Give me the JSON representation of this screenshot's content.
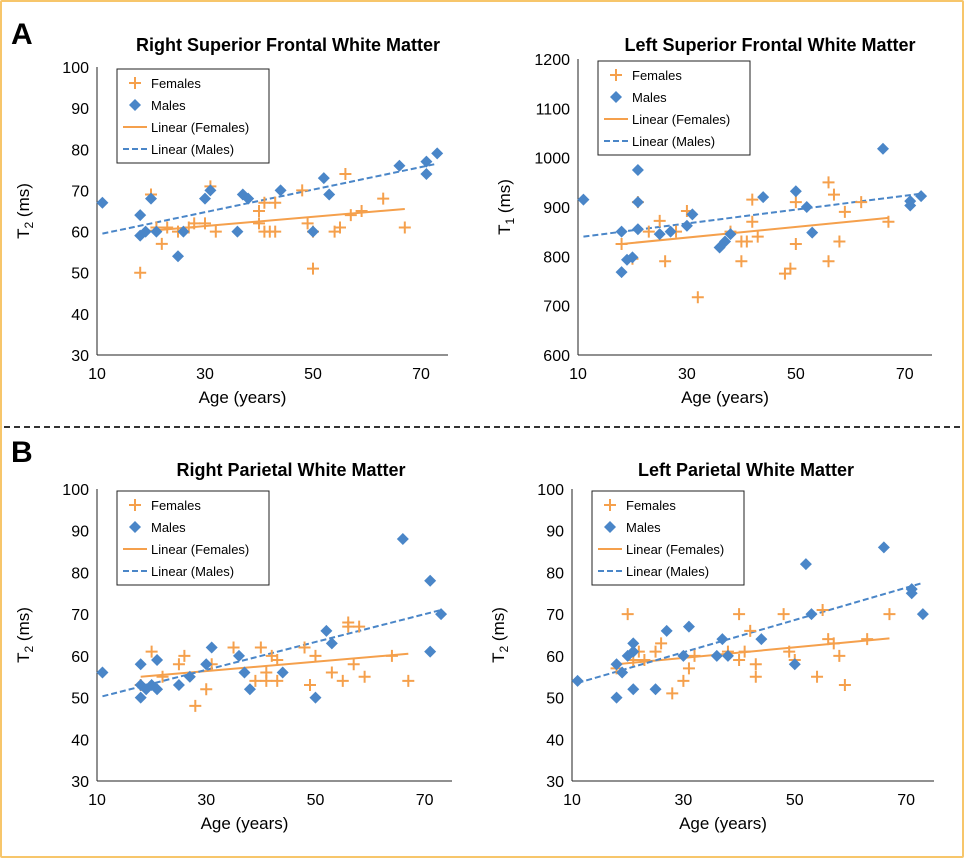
{
  "figure": {
    "panel_a_label": "A",
    "panel_b_label": "B",
    "colors": {
      "females": "#f5a04c",
      "males": "#4a86c8",
      "frame": "#f7c66b"
    }
  },
  "chart_data": [
    {
      "id": "rsf",
      "type": "scatter",
      "title": "Right Superior Frontal White Matter",
      "xlabel": "Age (years)",
      "ylabel_main": "T",
      "ylabel_sub": "2",
      "ylabel_rest": " (ms)",
      "xlim": [
        10,
        75
      ],
      "ylim": [
        30,
        100
      ],
      "xticks": [
        10,
        30,
        50,
        70
      ],
      "yticks": [
        30,
        40,
        50,
        60,
        70,
        80,
        90,
        100
      ],
      "legend": [
        "Females",
        "Males",
        "Linear (Females)",
        "Linear (Males)"
      ],
      "series": [
        {
          "name": "Females",
          "marker": "plus",
          "points": [
            [
              18,
              50
            ],
            [
              20,
              69
            ],
            [
              21,
              61
            ],
            [
              22,
              57
            ],
            [
              23,
              61
            ],
            [
              25,
              60
            ],
            [
              27,
              61
            ],
            [
              28,
              62
            ],
            [
              30,
              62
            ],
            [
              31,
              71
            ],
            [
              32,
              60
            ],
            [
              40,
              62
            ],
            [
              40,
              65
            ],
            [
              41,
              60
            ],
            [
              41,
              67
            ],
            [
              42,
              60
            ],
            [
              43,
              60
            ],
            [
              43,
              67
            ],
            [
              48,
              70
            ],
            [
              49,
              62
            ],
            [
              50,
              51
            ],
            [
              50,
              60
            ],
            [
              54,
              60
            ],
            [
              55,
              61
            ],
            [
              56,
              74
            ],
            [
              57,
              64
            ],
            [
              59,
              65
            ],
            [
              63,
              68
            ],
            [
              67,
              61
            ]
          ]
        },
        {
          "name": "Males",
          "marker": "diamond",
          "points": [
            [
              11,
              67
            ],
            [
              18,
              64
            ],
            [
              18,
              59
            ],
            [
              19,
              60
            ],
            [
              20,
              68
            ],
            [
              21,
              60
            ],
            [
              25,
              54
            ],
            [
              26,
              60
            ],
            [
              30,
              68
            ],
            [
              31,
              70
            ],
            [
              36,
              60
            ],
            [
              37,
              69
            ],
            [
              38,
              68
            ],
            [
              44,
              70
            ],
            [
              50,
              60
            ],
            [
              52,
              73
            ],
            [
              53,
              69
            ],
            [
              66,
              76
            ],
            [
              71,
              77
            ],
            [
              71,
              74
            ],
            [
              73,
              79
            ]
          ]
        }
      ],
      "trendlines": [
        {
          "name": "Linear (Females)",
          "x": [
            18,
            67
          ],
          "y": [
            60,
            65.5
          ]
        },
        {
          "name": "Linear (Males)",
          "x": [
            11,
            73
          ],
          "y": [
            59.5,
            76.5
          ]
        }
      ]
    },
    {
      "id": "lsf",
      "type": "scatter",
      "title": "Left Superior Frontal White Matter",
      "xlabel": "Age (years)",
      "ylabel_main": "T",
      "ylabel_sub": "1",
      "ylabel_rest": " (ms)",
      "xlim": [
        10,
        75
      ],
      "ylim": [
        600,
        1200
      ],
      "xticks": [
        10,
        30,
        50,
        70
      ],
      "yticks": [
        600,
        700,
        800,
        900,
        1000,
        1100,
        1200
      ],
      "legend": [
        "Females",
        "Males",
        "Linear (Females)",
        "Linear (Males)"
      ],
      "series": [
        {
          "name": "Females",
          "marker": "plus",
          "points": [
            [
              18,
              825
            ],
            [
              20,
              795
            ],
            [
              21,
              910
            ],
            [
              23,
              850
            ],
            [
              25,
              872
            ],
            [
              26,
              790
            ],
            [
              28,
              850
            ],
            [
              30,
              892
            ],
            [
              32,
              717
            ],
            [
              38,
              850
            ],
            [
              40,
              790
            ],
            [
              40,
              830
            ],
            [
              41,
              830
            ],
            [
              42,
              915
            ],
            [
              42,
              870
            ],
            [
              43,
              840
            ],
            [
              48,
              765
            ],
            [
              49,
              775
            ],
            [
              50,
              825
            ],
            [
              50,
              910
            ],
            [
              56,
              950
            ],
            [
              56,
              790
            ],
            [
              57,
              925
            ],
            [
              58,
              830
            ],
            [
              59,
              890
            ],
            [
              62,
              910
            ],
            [
              67,
              870
            ]
          ]
        },
        {
          "name": "Males",
          "marker": "diamond",
          "points": [
            [
              11,
              915
            ],
            [
              18,
              850
            ],
            [
              18,
              768
            ],
            [
              19,
              793
            ],
            [
              20,
              798
            ],
            [
              21,
              975
            ],
            [
              21,
              910
            ],
            [
              21,
              855
            ],
            [
              25,
              845
            ],
            [
              27,
              850
            ],
            [
              30,
              862
            ],
            [
              31,
              885
            ],
            [
              36,
              818
            ],
            [
              37,
              830
            ],
            [
              38,
              845
            ],
            [
              44,
              920
            ],
            [
              50,
              932
            ],
            [
              52,
              900
            ],
            [
              53,
              848
            ],
            [
              66,
              1018
            ],
            [
              71,
              912
            ],
            [
              71,
              903
            ],
            [
              73,
              922
            ]
          ]
        }
      ],
      "trendlines": [
        {
          "name": "Linear (Females)",
          "x": [
            18,
            67
          ],
          "y": [
            825,
            878
          ]
        },
        {
          "name": "Linear (Males)",
          "x": [
            11,
            73
          ],
          "y": [
            840,
            927
          ]
        }
      ]
    },
    {
      "id": "rp",
      "type": "scatter",
      "title": "Right Parietal White Matter",
      "xlabel": "Age (years)",
      "ylabel_main": "T",
      "ylabel_sub": "2",
      "ylabel_rest": " (ms)",
      "xlim": [
        10,
        75
      ],
      "ylim": [
        30,
        100
      ],
      "xticks": [
        10,
        30,
        50,
        70
      ],
      "yticks": [
        30,
        40,
        50,
        60,
        70,
        80,
        90,
        100
      ],
      "legend": [
        "Females",
        "Males",
        "Linear (Females)",
        "Linear (Males)"
      ],
      "series": [
        {
          "name": "Females",
          "marker": "plus",
          "points": [
            [
              18,
              53
            ],
            [
              20,
              61
            ],
            [
              22,
              55
            ],
            [
              25,
              58
            ],
            [
              26,
              60
            ],
            [
              28,
              48
            ],
            [
              30,
              52
            ],
            [
              31,
              58
            ],
            [
              35,
              62
            ],
            [
              39,
              54
            ],
            [
              40,
              62
            ],
            [
              41,
              56
            ],
            [
              41,
              54
            ],
            [
              42,
              60
            ],
            [
              43,
              54
            ],
            [
              43,
              59
            ],
            [
              48,
              62
            ],
            [
              49,
              53
            ],
            [
              50,
              60
            ],
            [
              53,
              56
            ],
            [
              55,
              54
            ],
            [
              56,
              67
            ],
            [
              56,
              68
            ],
            [
              57,
              58
            ],
            [
              58,
              67
            ],
            [
              59,
              55
            ],
            [
              64,
              60
            ],
            [
              67,
              54
            ]
          ]
        },
        {
          "name": "Males",
          "marker": "diamond",
          "points": [
            [
              11,
              56
            ],
            [
              18,
              58
            ],
            [
              18,
              53
            ],
            [
              18,
              50
            ],
            [
              19,
              52
            ],
            [
              20,
              53
            ],
            [
              21,
              52
            ],
            [
              21,
              59
            ],
            [
              25,
              53
            ],
            [
              27,
              55
            ],
            [
              30,
              58
            ],
            [
              31,
              62
            ],
            [
              36,
              60
            ],
            [
              37,
              56
            ],
            [
              38,
              52
            ],
            [
              44,
              56
            ],
            [
              50,
              50
            ],
            [
              52,
              66
            ],
            [
              53,
              63
            ],
            [
              66,
              88
            ],
            [
              71,
              78
            ],
            [
              71,
              61
            ],
            [
              73,
              70
            ]
          ]
        }
      ],
      "trendlines": [
        {
          "name": "Linear (Females)",
          "x": [
            18,
            67
          ],
          "y": [
            55,
            60.5
          ]
        },
        {
          "name": "Linear (Males)",
          "x": [
            11,
            73
          ],
          "y": [
            50.3,
            71
          ]
        }
      ]
    },
    {
      "id": "lp",
      "type": "scatter",
      "title": "Left Parietal White Matter",
      "xlabel": "Age (years)",
      "ylabel_main": "T",
      "ylabel_sub": "2",
      "ylabel_rest": " (ms)",
      "xlim": [
        10,
        75
      ],
      "ylim": [
        30,
        100
      ],
      "xticks": [
        10,
        30,
        50,
        70
      ],
      "yticks": [
        30,
        40,
        50,
        60,
        70,
        80,
        90,
        100
      ],
      "legend": [
        "Females",
        "Males",
        "Linear (Females)",
        "Linear (Males)"
      ],
      "series": [
        {
          "name": "Females",
          "marker": "plus",
          "points": [
            [
              18,
              57
            ],
            [
              20,
              70
            ],
            [
              21,
              59
            ],
            [
              22,
              61
            ],
            [
              23,
              59
            ],
            [
              25,
              61
            ],
            [
              26,
              63
            ],
            [
              28,
              51
            ],
            [
              30,
              54
            ],
            [
              31,
              57
            ],
            [
              32,
              60
            ],
            [
              38,
              61
            ],
            [
              40,
              70
            ],
            [
              40,
              59
            ],
            [
              41,
              61
            ],
            [
              42,
              66
            ],
            [
              43,
              55
            ],
            [
              43,
              58
            ],
            [
              48,
              70
            ],
            [
              49,
              61
            ],
            [
              50,
              59
            ],
            [
              54,
              55
            ],
            [
              55,
              71
            ],
            [
              56,
              64
            ],
            [
              57,
              63
            ],
            [
              58,
              60
            ],
            [
              59,
              53
            ],
            [
              63,
              64
            ],
            [
              67,
              70
            ]
          ]
        },
        {
          "name": "Males",
          "marker": "diamond",
          "points": [
            [
              11,
              54
            ],
            [
              18,
              50
            ],
            [
              18,
              58
            ],
            [
              19,
              56
            ],
            [
              20,
              60
            ],
            [
              21,
              61
            ],
            [
              21,
              52
            ],
            [
              21,
              63
            ],
            [
              25,
              52
            ],
            [
              27,
              66
            ],
            [
              30,
              60
            ],
            [
              31,
              67
            ],
            [
              36,
              60
            ],
            [
              37,
              64
            ],
            [
              38,
              60
            ],
            [
              44,
              64
            ],
            [
              50,
              58
            ],
            [
              52,
              82
            ],
            [
              53,
              70
            ],
            [
              66,
              86
            ],
            [
              71,
              76
            ],
            [
              71,
              75
            ],
            [
              73,
              70
            ]
          ]
        }
      ],
      "trendlines": [
        {
          "name": "Linear (Females)",
          "x": [
            18,
            67
          ],
          "y": [
            58,
            64.2
          ]
        },
        {
          "name": "Linear (Males)",
          "x": [
            11,
            73
          ],
          "y": [
            53.5,
            77.5
          ]
        }
      ]
    }
  ]
}
